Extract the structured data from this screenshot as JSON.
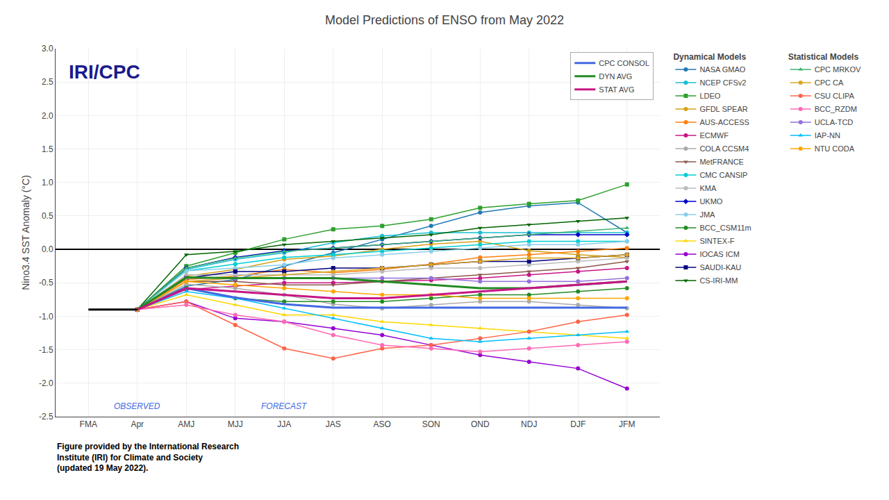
{
  "chart_data": {
    "type": "line",
    "title": "Model Predictions of ENSO from May 2022",
    "ylabel": "Nino3.4 SST Anomaly (°C)",
    "categories": [
      "FMA",
      "Apr",
      "AMJ",
      "MJJ",
      "JJA",
      "JAS",
      "ASO",
      "SON",
      "OND",
      "NDJ",
      "DJF",
      "JFM"
    ],
    "ylim": [
      -2.5,
      3.0
    ],
    "yticks": [
      -2.5,
      {
        "value": -2,
        "label": "-2.0"
      },
      -1.5,
      {
        "value": -1,
        "label": "-1.0"
      },
      -0.5,
      {
        "value": 0,
        "label": "0.0"
      },
      0.5,
      {
        "value": 1,
        "label": "1.0"
      },
      1.5,
      {
        "value": 2,
        "label": "2.0"
      },
      2.5,
      {
        "value": 3,
        "label": "3.0"
      }
    ],
    "grid": true,
    "annotations": [
      {
        "text": "OBSERVED",
        "x": "Apr",
        "color": "#4169e1"
      },
      {
        "text": "FORECAST",
        "x": "JJA",
        "color": "#4169e1"
      },
      {
        "text": "IRI/CPC",
        "color": "#1a1a8c"
      }
    ],
    "caption": "Figure provided by the International Research\nInstitute (IRI) for Climate and Society\n(updated 19 May 2022).",
    "series": [
      {
        "name": "NASA GMAO",
        "group": "Dynamical Models",
        "color": "#1f77b4",
        "marker": "circle",
        "values": [
          null,
          -0.9,
          -0.55,
          -0.45,
          -0.25,
          -0.05,
          0.15,
          0.35,
          0.55,
          0.65,
          0.7,
          0.25
        ]
      },
      {
        "name": "NCEP CFSv2",
        "group": "Dynamical Models",
        "color": "#17becf",
        "marker": "circle",
        "values": [
          null,
          -0.9,
          -0.3,
          -0.15,
          -0.05,
          0.1,
          0.2,
          0.25,
          0.25,
          0.25,
          0.25,
          0.25
        ]
      },
      {
        "name": "LDEO",
        "group": "Dynamical Models",
        "color": "#2ca02c",
        "marker": "square",
        "values": [
          null,
          -0.9,
          -0.25,
          -0.05,
          0.15,
          0.3,
          0.35,
          0.45,
          0.62,
          0.68,
          0.73,
          0.97
        ]
      },
      {
        "name": "GFDL SPEAR",
        "group": "Dynamical Models",
        "color": "#d4a017",
        "marker": "circle",
        "values": [
          null,
          -0.9,
          -0.4,
          -0.3,
          -0.15,
          -0.1,
          0.0,
          0.08,
          0.12,
          -0.02,
          -0.08,
          -0.12
        ]
      },
      {
        "name": "AUS-ACCESS",
        "group": "Dynamical Models",
        "color": "#ff7f0e",
        "marker": "circle",
        "values": [
          null,
          -0.9,
          -0.45,
          -0.4,
          -0.3,
          -0.35,
          -0.3,
          -0.22,
          -0.12,
          -0.08,
          -0.03,
          0.02
        ]
      },
      {
        "name": "ECMWF",
        "group": "Dynamical Models",
        "color": "#c71585",
        "marker": "circle",
        "values": [
          null,
          -0.9,
          -0.6,
          -0.55,
          -0.5,
          -0.5,
          -0.48,
          -0.46,
          -0.43,
          -0.38,
          -0.33,
          -0.28
        ]
      },
      {
        "name": "COLA CCSM4",
        "group": "Dynamical Models",
        "color": "#aaaaaa",
        "marker": "circle",
        "values": [
          null,
          -0.9,
          -0.52,
          -0.58,
          -0.68,
          -0.82,
          -0.88,
          -0.83,
          -0.78,
          -0.78,
          -0.83,
          -0.88
        ]
      },
      {
        "name": "MetFRANCE",
        "group": "Dynamical Models",
        "color": "#8c564b",
        "marker": "triangle-down",
        "values": [
          null,
          -0.9,
          -0.48,
          -0.48,
          -0.53,
          -0.53,
          -0.48,
          -0.43,
          -0.38,
          -0.33,
          -0.28,
          -0.18
        ]
      },
      {
        "name": "CMC CANSIP",
        "group": "Dynamical Models",
        "color": "#00ced1",
        "marker": "circle",
        "values": [
          null,
          -0.9,
          -0.32,
          -0.22,
          -0.12,
          -0.08,
          -0.03,
          0.02,
          0.07,
          0.12,
          0.12,
          0.12
        ]
      },
      {
        "name": "KMA",
        "group": "Dynamical Models",
        "color": "#bbbbbb",
        "marker": "circle",
        "values": [
          null,
          -0.9,
          -0.38,
          -0.38,
          -0.38,
          -0.38,
          -0.33,
          -0.28,
          -0.28,
          -0.23,
          -0.18,
          -0.13
        ]
      },
      {
        "name": "UKMO",
        "group": "Dynamical Models",
        "color": "#0000cd",
        "marker": "diamond",
        "values": [
          null,
          -0.9,
          -0.28,
          -0.12,
          -0.02,
          0.02,
          0.07,
          0.12,
          0.17,
          0.22,
          0.22,
          0.22
        ]
      },
      {
        "name": "JMA",
        "group": "Dynamical Models",
        "color": "#87ceeb",
        "marker": "circle",
        "values": [
          null,
          -0.9,
          -0.32,
          -0.28,
          -0.23,
          -0.13,
          -0.08,
          -0.03,
          0.02,
          0.07,
          0.07,
          0.12
        ]
      },
      {
        "name": "BCC_CSM11m",
        "group": "Dynamical Models",
        "color": "#228b22",
        "marker": "circle",
        "values": [
          null,
          -0.9,
          -0.58,
          -0.73,
          -0.78,
          -0.78,
          -0.78,
          -0.73,
          -0.68,
          -0.68,
          -0.63,
          -0.58
        ]
      },
      {
        "name": "SINTEX-F",
        "group": "Dynamical Models",
        "color": "#ffd700",
        "marker": "triangle-up",
        "values": [
          null,
          -0.9,
          -0.68,
          -0.83,
          -0.98,
          -0.98,
          -1.08,
          -1.13,
          -1.18,
          -1.23,
          -1.28,
          -1.33
        ]
      },
      {
        "name": "IOCAS ICM",
        "group": "Dynamical Models",
        "color": "#9400d3",
        "marker": "circle",
        "values": [
          null,
          -0.9,
          -0.78,
          -1.03,
          -1.08,
          -1.18,
          -1.28,
          -1.43,
          -1.58,
          -1.68,
          -1.78,
          -2.08
        ]
      },
      {
        "name": "SAUDI-KAU",
        "group": "Dynamical Models",
        "color": "#000080",
        "marker": "square",
        "values": [
          null,
          -0.9,
          -0.43,
          -0.33,
          -0.33,
          -0.28,
          -0.28,
          -0.23,
          -0.18,
          -0.18,
          -0.13,
          -0.08
        ]
      },
      {
        "name": "CS-IRI-MM",
        "group": "Dynamical Models",
        "color": "#006400",
        "marker": "triangle-down",
        "values": [
          null,
          -0.9,
          -0.08,
          -0.03,
          0.07,
          0.12,
          0.17,
          0.22,
          0.32,
          0.37,
          0.42,
          0.47
        ]
      },
      {
        "name": "CPC MRKOV",
        "group": "Statistical Models",
        "color": "#3cb371",
        "marker": "triangle-up",
        "values": [
          null,
          -0.9,
          -0.28,
          -0.13,
          -0.03,
          0.02,
          0.07,
          0.12,
          0.17,
          0.22,
          0.27,
          0.32
        ]
      },
      {
        "name": "CPC CA",
        "group": "Statistical Models",
        "color": "#daa520",
        "marker": "circle",
        "values": [
          null,
          -0.9,
          -0.48,
          -0.43,
          -0.38,
          -0.33,
          -0.28,
          -0.23,
          -0.18,
          -0.13,
          -0.13,
          -0.08
        ]
      },
      {
        "name": "CSU CLIPA",
        "group": "Statistical Models",
        "color": "#ff6347",
        "marker": "circle",
        "values": [
          null,
          -0.9,
          -0.78,
          -1.13,
          -1.48,
          -1.63,
          -1.48,
          -1.43,
          -1.33,
          -1.23,
          -1.08,
          -0.98
        ]
      },
      {
        "name": "BCC_RZDM",
        "group": "Statistical Models",
        "color": "#ff69b4",
        "marker": "circle",
        "values": [
          null,
          -0.9,
          -0.83,
          -0.98,
          -1.08,
          -1.28,
          -1.43,
          -1.48,
          -1.53,
          -1.48,
          -1.43,
          -1.38
        ]
      },
      {
        "name": "UCLA-TCD",
        "group": "Statistical Models",
        "color": "#9370db",
        "marker": "circle",
        "values": [
          null,
          -0.9,
          -0.43,
          -0.43,
          -0.43,
          -0.43,
          -0.43,
          -0.43,
          -0.48,
          -0.48,
          -0.48,
          -0.43
        ]
      },
      {
        "name": "IAP-NN",
        "group": "Statistical Models",
        "color": "#00bfff",
        "marker": "triangle-up",
        "values": [
          null,
          -0.9,
          -0.63,
          -0.73,
          -0.88,
          -1.03,
          -1.18,
          -1.33,
          -1.38,
          -1.33,
          -1.28,
          -1.23
        ]
      },
      {
        "name": "NTU CODA",
        "group": "Statistical Models",
        "color": "#ffa500",
        "marker": "circle",
        "values": [
          null,
          -0.9,
          -0.48,
          -0.53,
          -0.58,
          -0.63,
          -0.68,
          -0.68,
          -0.73,
          -0.73,
          -0.73,
          -0.73
        ]
      },
      {
        "name": "CPC CONSOL",
        "color": "#4169e1",
        "values": [
          null,
          -0.9,
          -0.58,
          -0.72,
          -0.82,
          -0.87,
          -0.87,
          -0.87,
          -0.87,
          -0.87,
          -0.87,
          -0.87
        ]
      },
      {
        "name": "DYN AVG",
        "color": "#228b22",
        "values": [
          null,
          -0.9,
          -0.42,
          -0.43,
          -0.43,
          -0.43,
          -0.48,
          -0.53,
          -0.58,
          -0.58,
          -0.53,
          -0.48
        ]
      },
      {
        "name": "STAT AVG",
        "color": "#c71585",
        "values": [
          null,
          -0.9,
          -0.58,
          -0.63,
          -0.68,
          -0.73,
          -0.73,
          -0.68,
          -0.63,
          -0.58,
          -0.53,
          -0.48
        ]
      },
      {
        "color": "#000000",
        "values": [
          -0.9,
          -0.9,
          null,
          null,
          null,
          null,
          null,
          null,
          null,
          null,
          null,
          null
        ]
      }
    ]
  }
}
